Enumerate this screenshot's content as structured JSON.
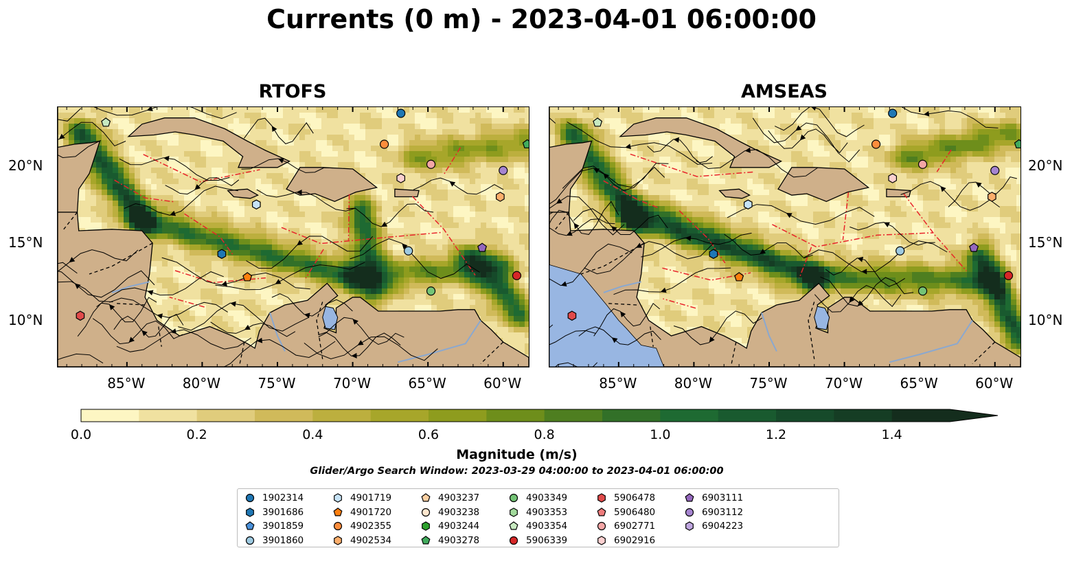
{
  "title": "Currents (0 m) - 2023-04-01 06:00:00",
  "panels": [
    {
      "title": "RTOFS",
      "variant": "rtofs"
    },
    {
      "title": "AMSEAS",
      "variant": "amseas"
    }
  ],
  "axes": {
    "lon_ticks": [
      "85°W",
      "80°W",
      "75°W",
      "70°W",
      "65°W",
      "60°W"
    ],
    "lat_ticks": [
      "20°N",
      "15°N",
      "10°N"
    ],
    "lon_range": [
      -89.6,
      -58.3
    ],
    "lat_range": [
      7.0,
      23.8
    ]
  },
  "colorbar": {
    "label": "Magnitude (m/s)",
    "ticks": [
      "0.0",
      "0.2",
      "0.4",
      "0.6",
      "0.8",
      "1.0",
      "1.2",
      "1.4"
    ],
    "range": [
      0.0,
      1.5
    ],
    "extend": "max",
    "colors": [
      "#fdf6c3",
      "#f0e1a0",
      "#e0cc7c",
      "#d0ba5a",
      "#bcaf3e",
      "#a7a62a",
      "#8e9c1e",
      "#6e8e1b",
      "#4e7e20",
      "#327028",
      "#1e6a32",
      "#195a2f",
      "#164a2a",
      "#153d24",
      "#142d1d"
    ]
  },
  "search_window": "Glider/Argo Search Window: 2023-03-29 04:00:00 to 2023-04-01 06:00:00",
  "legend": [
    {
      "id": "1902314",
      "marker": "circle",
      "color": "#1f77b4"
    },
    {
      "id": "3901686",
      "marker": "hexagon",
      "color": "#1f77b4"
    },
    {
      "id": "3901859",
      "marker": "pentagon",
      "color": "#4a90d9"
    },
    {
      "id": "3901860",
      "marker": "circle",
      "color": "#9ecae1"
    },
    {
      "id": "4901719",
      "marker": "hexagon",
      "color": "#c6e3f7"
    },
    {
      "id": "4901720",
      "marker": "pentagon",
      "color": "#ff7f0e"
    },
    {
      "id": "4902355",
      "marker": "circle",
      "color": "#fd8d3c"
    },
    {
      "id": "4902534",
      "marker": "hexagon",
      "color": "#fdae6b"
    },
    {
      "id": "4903237",
      "marker": "pentagon",
      "color": "#fdd0a2"
    },
    {
      "id": "4903238",
      "marker": "circle",
      "color": "#fee6ce"
    },
    {
      "id": "4903244",
      "marker": "hexagon",
      "color": "#2ca02c"
    },
    {
      "id": "4903278",
      "marker": "pentagon",
      "color": "#41ab5d"
    },
    {
      "id": "4903349",
      "marker": "circle",
      "color": "#74c476"
    },
    {
      "id": "4903353",
      "marker": "hexagon",
      "color": "#a1d99b"
    },
    {
      "id": "4903354",
      "marker": "pentagon",
      "color": "#c7e9c0"
    },
    {
      "id": "5906339",
      "marker": "circle",
      "color": "#d62728"
    },
    {
      "id": "5906478",
      "marker": "hexagon",
      "color": "#e04a4a"
    },
    {
      "id": "5906480",
      "marker": "pentagon",
      "color": "#ee7c7c"
    },
    {
      "id": "6902771",
      "marker": "circle",
      "color": "#f4a6a6"
    },
    {
      "id": "6902916",
      "marker": "hexagon",
      "color": "#fbd0d0"
    },
    {
      "id": "6903111",
      "marker": "pentagon",
      "color": "#9467bd"
    },
    {
      "id": "6903112",
      "marker": "circle",
      "color": "#a584d0"
    },
    {
      "id": "6904223",
      "marker": "hexagon",
      "color": "#bfa6e0"
    }
  ],
  "floats": [
    {
      "id": "1902314",
      "lon": -66.8,
      "lat": 23.4
    },
    {
      "id": "4903278",
      "lon": -58.4,
      "lat": 21.4
    },
    {
      "id": "4902355",
      "lon": -67.9,
      "lat": 21.4
    },
    {
      "id": "6902771",
      "lon": -64.8,
      "lat": 20.1
    },
    {
      "id": "6903112",
      "lon": -60.0,
      "lat": 19.7
    },
    {
      "id": "6902916",
      "lon": -66.8,
      "lat": 19.2
    },
    {
      "id": "4902534",
      "lon": -60.2,
      "lat": 18.0
    },
    {
      "id": "4901719",
      "lon": -76.4,
      "lat": 17.5
    },
    {
      "id": "4903354",
      "lon": -86.4,
      "lat": 22.8
    },
    {
      "id": "3901686",
      "lon": -78.7,
      "lat": 14.3
    },
    {
      "id": "6903111",
      "lon": -61.4,
      "lat": 14.7
    },
    {
      "id": "3901860",
      "lon": -66.3,
      "lat": 14.5
    },
    {
      "id": "4901720",
      "lon": -77.0,
      "lat": 12.8
    },
    {
      "id": "5906339",
      "lon": -59.1,
      "lat": 12.9
    },
    {
      "id": "4903349",
      "lon": -64.8,
      "lat": 11.9
    },
    {
      "id": "5906478",
      "lon": -88.1,
      "lat": 10.3
    }
  ]
}
